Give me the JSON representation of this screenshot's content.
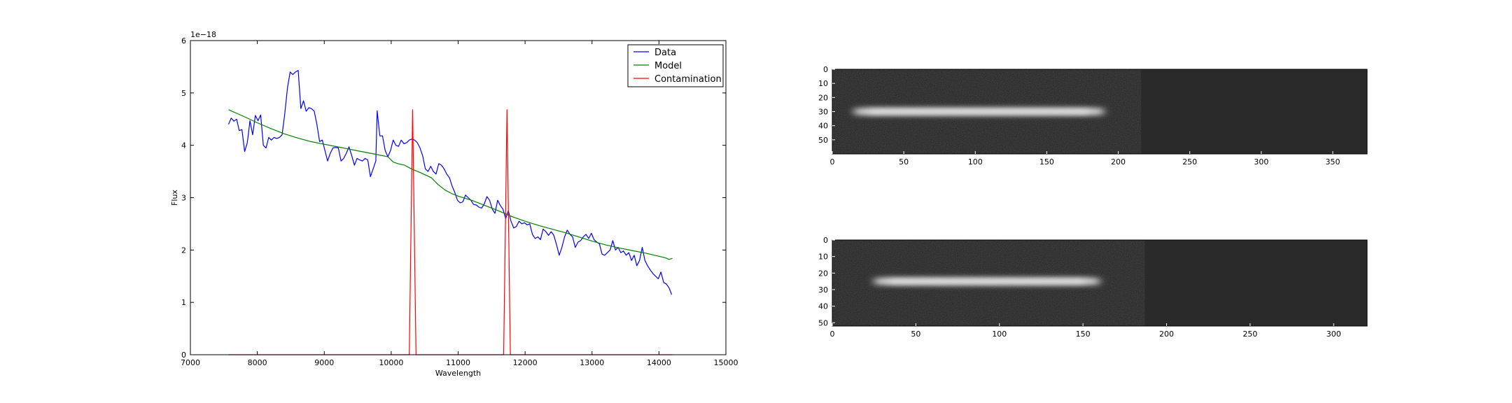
{
  "chart_data": [
    {
      "type": "line",
      "xlabel": "Wavelength",
      "ylabel": "Flux",
      "offset_text": "1e−18",
      "xlim": [
        7000,
        15000
      ],
      "ylim": [
        0,
        6
      ],
      "xticks": [
        7000,
        8000,
        9000,
        10000,
        11000,
        12000,
        13000,
        14000,
        15000
      ],
      "yticks": [
        0,
        1,
        2,
        3,
        4,
        5,
        6
      ],
      "legend_position": "top-right",
      "series": [
        {
          "name": "Data",
          "color": "#0000ff",
          "points": [
            [
              7570,
              4.4
            ],
            [
              7610,
              4.52
            ],
            [
              7650,
              4.46
            ],
            [
              7690,
              4.5
            ],
            [
              7730,
              4.28
            ],
            [
              7770,
              4.3
            ],
            [
              7810,
              3.88
            ],
            [
              7850,
              4.05
            ],
            [
              7890,
              4.47
            ],
            [
              7930,
              4.2
            ],
            [
              7970,
              4.57
            ],
            [
              8010,
              4.47
            ],
            [
              8050,
              4.58
            ],
            [
              8090,
              4.0
            ],
            [
              8130,
              3.95
            ],
            [
              8170,
              4.15
            ],
            [
              8210,
              4.1
            ],
            [
              8250,
              4.15
            ],
            [
              8290,
              4.13
            ],
            [
              8330,
              4.15
            ],
            [
              8370,
              4.2
            ],
            [
              8410,
              4.6
            ],
            [
              8450,
              5.1
            ],
            [
              8490,
              5.4
            ],
            [
              8530,
              5.35
            ],
            [
              8570,
              5.4
            ],
            [
              8610,
              5.43
            ],
            [
              8650,
              4.7
            ],
            [
              8690,
              4.85
            ],
            [
              8730,
              4.65
            ],
            [
              8770,
              4.72
            ],
            [
              8810,
              4.7
            ],
            [
              8850,
              4.65
            ],
            [
              8890,
              4.4
            ],
            [
              8930,
              4.07
            ],
            [
              8970,
              4.1
            ],
            [
              9010,
              3.9
            ],
            [
              9050,
              3.7
            ],
            [
              9090,
              3.85
            ],
            [
              9130,
              3.95
            ],
            [
              9170,
              3.96
            ],
            [
              9210,
              3.95
            ],
            [
              9250,
              3.7
            ],
            [
              9290,
              3.75
            ],
            [
              9330,
              3.85
            ],
            [
              9370,
              3.97
            ],
            [
              9410,
              3.8
            ],
            [
              9450,
              3.62
            ],
            [
              9490,
              3.75
            ],
            [
              9530,
              3.72
            ],
            [
              9570,
              3.7
            ],
            [
              9610,
              3.75
            ],
            [
              9650,
              3.72
            ],
            [
              9690,
              3.4
            ],
            [
              9730,
              3.55
            ],
            [
              9770,
              3.7
            ],
            [
              9790,
              4.66
            ],
            [
              9830,
              4.18
            ],
            [
              9870,
              4.18
            ],
            [
              9910,
              3.9
            ],
            [
              9950,
              3.78
            ],
            [
              9990,
              3.9
            ],
            [
              10030,
              4.1
            ],
            [
              10070,
              4.0
            ],
            [
              10110,
              3.98
            ],
            [
              10150,
              4.1
            ],
            [
              10190,
              4.03
            ],
            [
              10230,
              4.05
            ],
            [
              10270,
              4.1
            ],
            [
              10310,
              4.12
            ],
            [
              10350,
              4.1
            ],
            [
              10390,
              4.05
            ],
            [
              10430,
              3.95
            ],
            [
              10470,
              3.8
            ],
            [
              10510,
              3.55
            ],
            [
              10550,
              3.5
            ],
            [
              10590,
              3.6
            ],
            [
              10630,
              3.5
            ],
            [
              10670,
              3.45
            ],
            [
              10710,
              3.65
            ],
            [
              10750,
              3.62
            ],
            [
              10790,
              3.55
            ],
            [
              10830,
              3.45
            ],
            [
              10870,
              3.38
            ],
            [
              10910,
              3.22
            ],
            [
              10950,
              3.1
            ],
            [
              10990,
              2.95
            ],
            [
              11030,
              2.9
            ],
            [
              11070,
              2.92
            ],
            [
              11110,
              3.05
            ],
            [
              11150,
              3.0
            ],
            [
              11190,
              2.95
            ],
            [
              11230,
              2.87
            ],
            [
              11270,
              2.86
            ],
            [
              11310,
              2.82
            ],
            [
              11350,
              2.8
            ],
            [
              11390,
              2.88
            ],
            [
              11430,
              3.02
            ],
            [
              11470,
              2.95
            ],
            [
              11510,
              2.78
            ],
            [
              11550,
              2.7
            ],
            [
              11590,
              2.95
            ],
            [
              11630,
              2.85
            ],
            [
              11670,
              2.78
            ],
            [
              11710,
              2.6
            ],
            [
              11750,
              2.75
            ],
            [
              11790,
              2.55
            ],
            [
              11830,
              2.42
            ],
            [
              11870,
              2.45
            ],
            [
              11910,
              2.55
            ],
            [
              11950,
              2.5
            ],
            [
              11990,
              2.52
            ],
            [
              12030,
              2.48
            ],
            [
              12070,
              2.5
            ],
            [
              12110,
              2.3
            ],
            [
              12150,
              2.22
            ],
            [
              12190,
              2.25
            ],
            [
              12230,
              2.2
            ],
            [
              12270,
              2.4
            ],
            [
              12310,
              2.35
            ],
            [
              12350,
              2.28
            ],
            [
              12390,
              2.35
            ],
            [
              12430,
              2.28
            ],
            [
              12470,
              2.1
            ],
            [
              12510,
              1.9
            ],
            [
              12550,
              2.05
            ],
            [
              12590,
              2.25
            ],
            [
              12630,
              2.38
            ],
            [
              12670,
              2.3
            ],
            [
              12710,
              2.25
            ],
            [
              12750,
              2.05
            ],
            [
              12790,
              2.15
            ],
            [
              12830,
              2.18
            ],
            [
              12870,
              2.25
            ],
            [
              12910,
              2.3
            ],
            [
              12950,
              2.22
            ],
            [
              12990,
              2.32
            ],
            [
              13030,
              2.2
            ],
            [
              13070,
              2.15
            ],
            [
              13110,
              2.12
            ],
            [
              13150,
              1.92
            ],
            [
              13190,
              1.9
            ],
            [
              13230,
              1.95
            ],
            [
              13270,
              2.0
            ],
            [
              13310,
              2.18
            ],
            [
              13350,
              2.0
            ],
            [
              13390,
              2.05
            ],
            [
              13430,
              1.95
            ],
            [
              13470,
              1.98
            ],
            [
              13510,
              1.9
            ],
            [
              13550,
              1.95
            ],
            [
              13590,
              1.8
            ],
            [
              13630,
              1.9
            ],
            [
              13670,
              1.7
            ],
            [
              13710,
              1.8
            ],
            [
              13750,
              2.05
            ],
            [
              13790,
              1.8
            ],
            [
              13830,
              1.7
            ],
            [
              13870,
              1.62
            ],
            [
              13910,
              1.55
            ],
            [
              13950,
              1.5
            ],
            [
              13990,
              1.45
            ],
            [
              14030,
              1.58
            ],
            [
              14070,
              1.38
            ],
            [
              14110,
              1.35
            ],
            [
              14150,
              1.28
            ],
            [
              14190,
              1.15
            ]
          ]
        },
        {
          "name": "Model",
          "color": "#008000",
          "points": [
            [
              7570,
              4.68
            ],
            [
              7800,
              4.55
            ],
            [
              8000,
              4.43
            ],
            [
              8200,
              4.32
            ],
            [
              8400,
              4.22
            ],
            [
              8600,
              4.14
            ],
            [
              8800,
              4.07
            ],
            [
              9000,
              4.02
            ],
            [
              9200,
              3.97
            ],
            [
              9400,
              3.92
            ],
            [
              9600,
              3.87
            ],
            [
              9800,
              3.82
            ],
            [
              9950,
              3.78
            ],
            [
              10030,
              3.68
            ],
            [
              10100,
              3.65
            ],
            [
              10200,
              3.62
            ],
            [
              10300,
              3.55
            ],
            [
              10450,
              3.47
            ],
            [
              10600,
              3.38
            ],
            [
              10700,
              3.25
            ],
            [
              10800,
              3.15
            ],
            [
              10900,
              3.08
            ],
            [
              11000,
              3.03
            ],
            [
              11200,
              2.95
            ],
            [
              11400,
              2.85
            ],
            [
              11600,
              2.75
            ],
            [
              11800,
              2.64
            ],
            [
              12000,
              2.55
            ],
            [
              12200,
              2.47
            ],
            [
              12400,
              2.4
            ],
            [
              12600,
              2.33
            ],
            [
              12800,
              2.25
            ],
            [
              13000,
              2.17
            ],
            [
              13200,
              2.1
            ],
            [
              13400,
              2.04
            ],
            [
              13600,
              1.99
            ],
            [
              13800,
              1.94
            ],
            [
              14000,
              1.88
            ],
            [
              14100,
              1.85
            ],
            [
              14150,
              1.82
            ],
            [
              14200,
              1.84
            ]
          ]
        },
        {
          "name": "Contamination",
          "color": "#ff0000",
          "points": [
            [
              7570,
              0.0
            ],
            [
              10270,
              0.0
            ],
            [
              10320,
              4.68
            ],
            [
              10370,
              0.0
            ],
            [
              11680,
              0.0
            ],
            [
              11730,
              4.68
            ],
            [
              11780,
              0.0
            ],
            [
              14200,
              0.0
            ]
          ]
        }
      ]
    },
    {
      "type": "heatmap",
      "xlim": [
        0,
        374
      ],
      "ylim": [
        60,
        0
      ],
      "xticks": [
        0,
        50,
        100,
        150,
        200,
        250,
        300,
        350
      ],
      "yticks": [
        0,
        10,
        20,
        30,
        40,
        50
      ],
      "data_extent_x": 216,
      "trace_y": 30,
      "trace_x_range": [
        15,
        190
      ]
    },
    {
      "type": "heatmap",
      "xlim": [
        0,
        320
      ],
      "ylim": [
        52,
        0
      ],
      "xticks": [
        0,
        50,
        100,
        150,
        200,
        250,
        300
      ],
      "yticks": [
        0,
        10,
        20,
        30,
        40,
        50
      ],
      "data_extent_x": 187,
      "trace_y": 25,
      "trace_x_range": [
        25,
        160
      ]
    }
  ]
}
